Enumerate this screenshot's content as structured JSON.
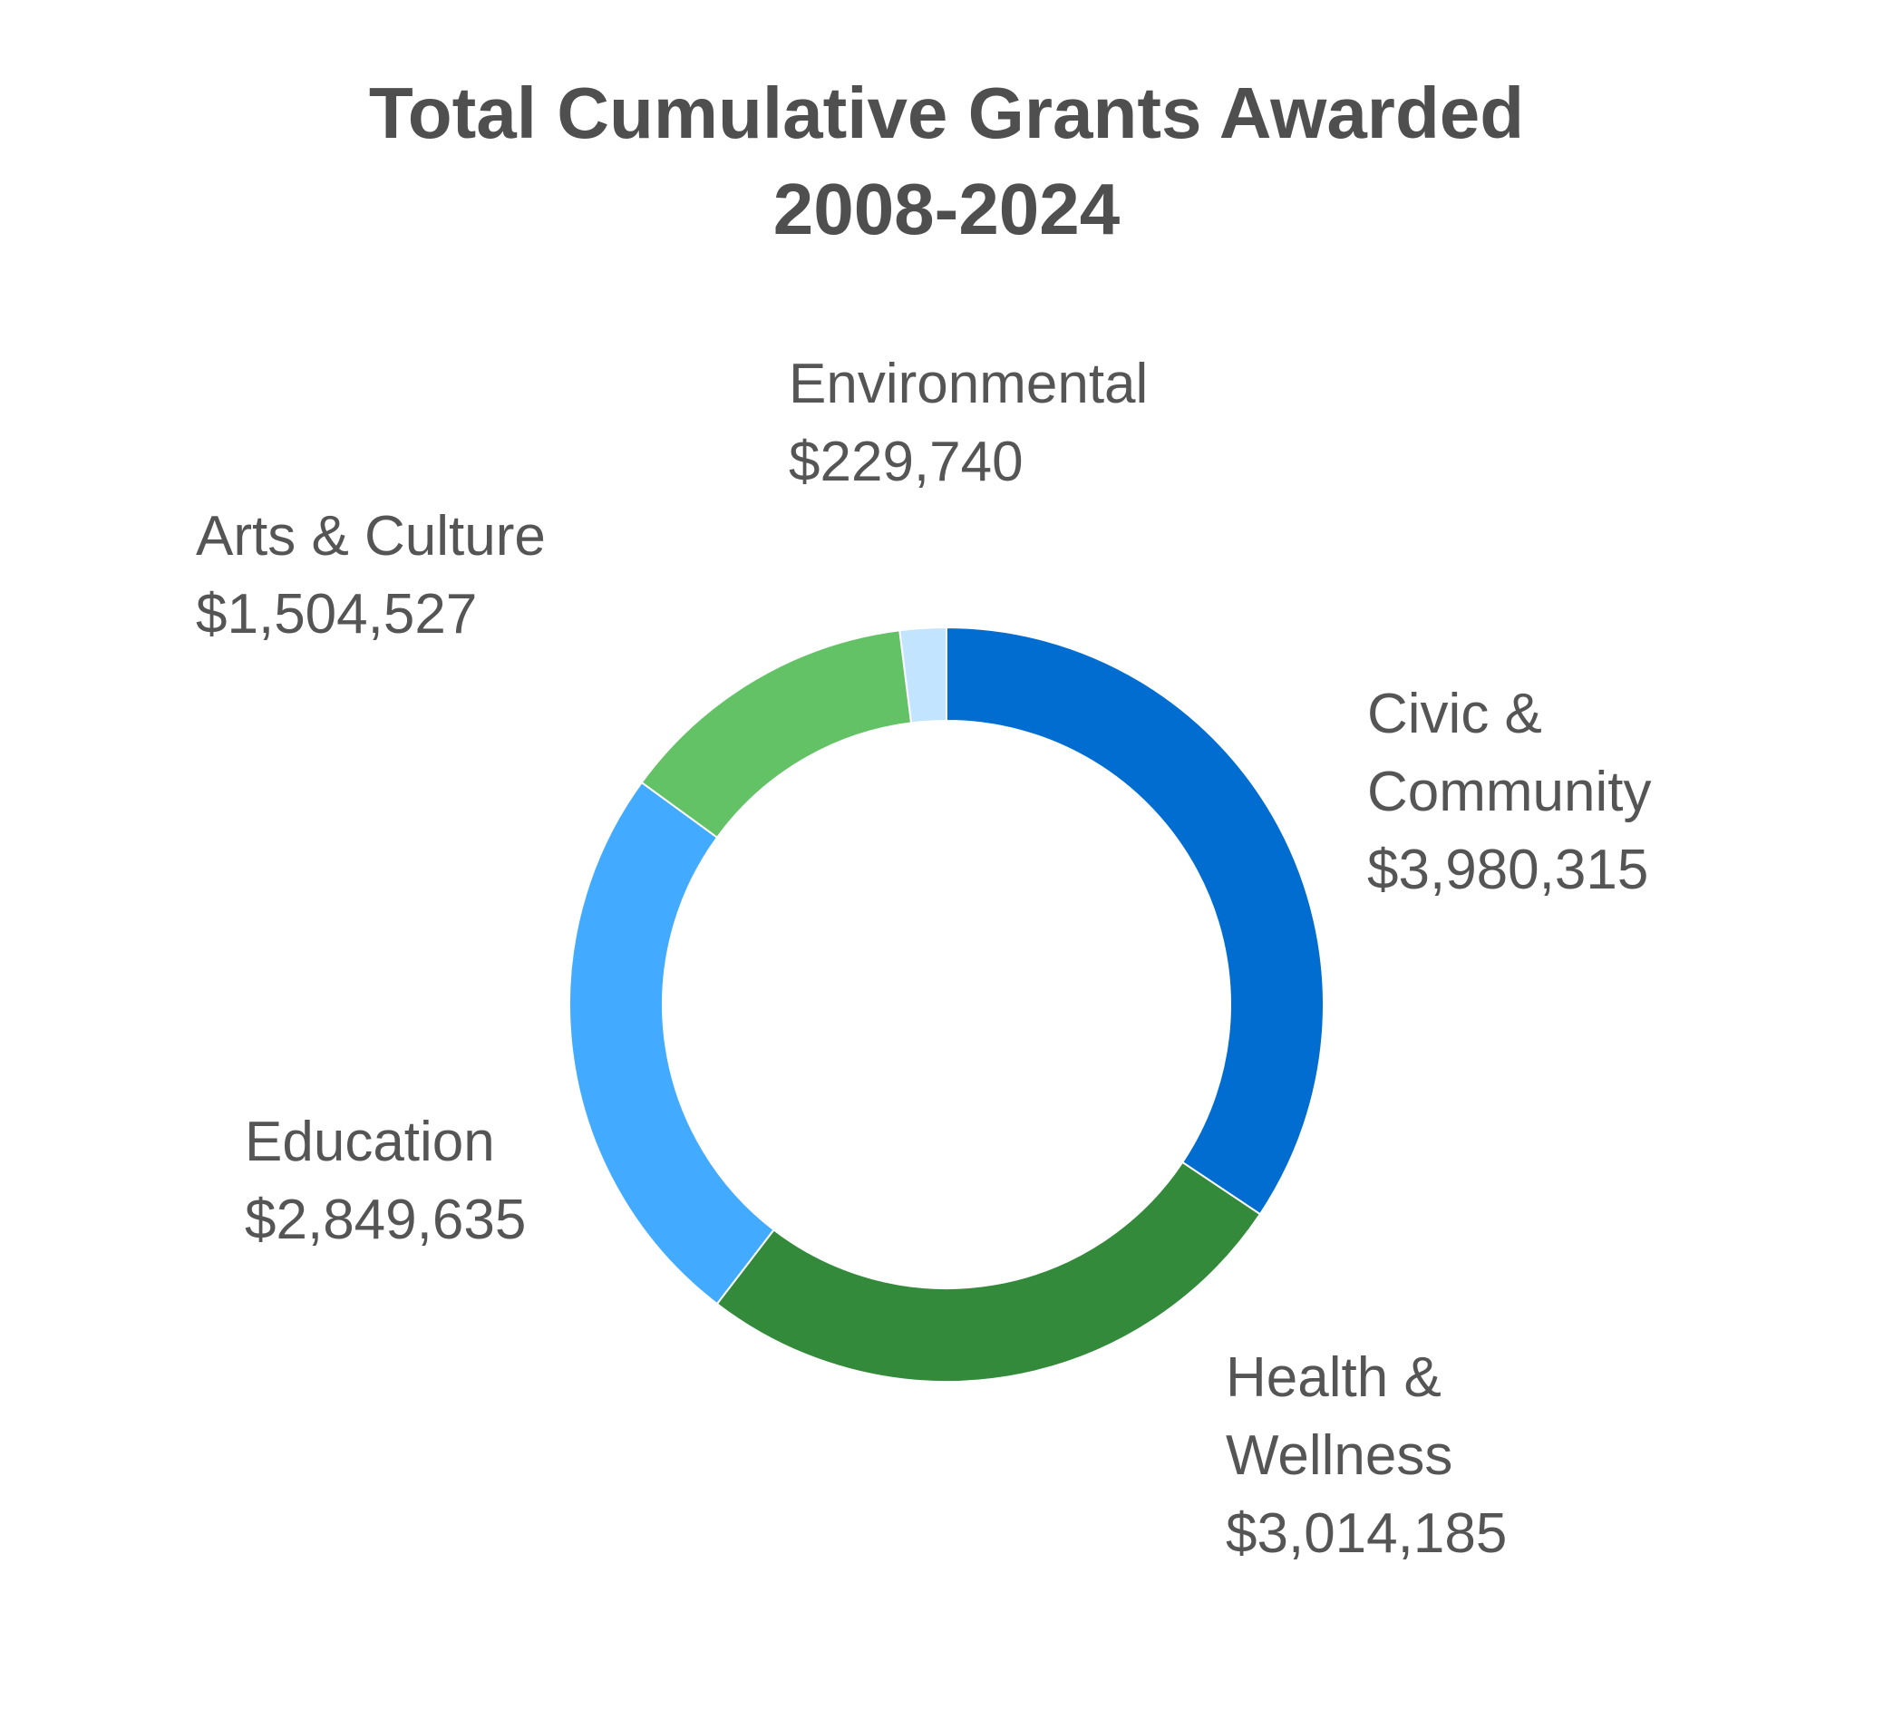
{
  "chart_data": {
    "type": "pie",
    "variant": "donut",
    "title": "Total Cumulative Grants Awarded",
    "subtitle": "2008-2024",
    "legend": "none",
    "slices": [
      {
        "category": "Civic & Community",
        "label_lines": [
          "Civic &",
          "Community"
        ],
        "value": 3980315,
        "value_label": "$3,980,315",
        "color": "#016dd0"
      },
      {
        "category": "Health & Wellness",
        "label_lines": [
          "Health &",
          "Wellness"
        ],
        "value": 3014185,
        "value_label": "$3,014,185",
        "color": "#338a3a"
      },
      {
        "category": "Education",
        "label_lines": [
          "Education"
        ],
        "value": 2849635,
        "value_label": "$2,849,635",
        "color": "#42abff"
      },
      {
        "category": "Arts & Culture",
        "label_lines": [
          "Arts & Culture"
        ],
        "value": 1504527,
        "value_label": "$1,504,527",
        "color": "#63c166"
      },
      {
        "category": "Environmental",
        "label_lines": [
          "Environmental"
        ],
        "value": 229740,
        "value_label": "$229,740",
        "color": "#c2e4ff"
      }
    ]
  }
}
